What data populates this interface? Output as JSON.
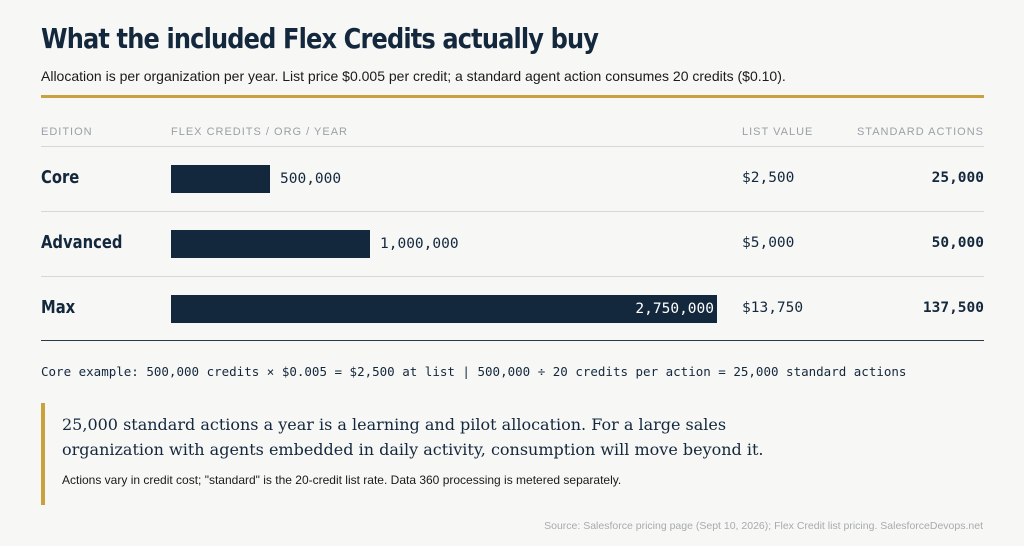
{
  "header": {
    "title": "What the included Flex Credits actually buy",
    "subtitle": "Allocation is per organization per year. List price $0.005 per credit; a standard agent action consumes 20 credits ($0.10)."
  },
  "table": {
    "columns": [
      "EDITION",
      "FLEX CREDITS / ORG / YEAR",
      "LIST VALUE",
      "STANDARD ACTIONS"
    ]
  },
  "chart_data": {
    "type": "bar",
    "orientation": "horizontal",
    "categories": [
      "Core",
      "Advanced",
      "Max"
    ],
    "values": [
      500000,
      1000000,
      2750000
    ],
    "value_labels": [
      "500,000",
      "1,000,000",
      "2,750,000"
    ],
    "list_value": [
      "$2,500",
      "$5,000",
      "$13,750"
    ],
    "standard_actions": [
      "25,000",
      "50,000",
      "137,500"
    ],
    "xlim": [
      0,
      2750000
    ],
    "grid": false,
    "legend": "none"
  },
  "formula": "Core example: 500,000 credits × $0.005 = $2,500 at list | 500,000 ÷ 20 credits per action = 25,000 standard actions",
  "callout": {
    "text": "25,000 standard actions a year is a learning and pilot allocation. For a large sales organization with agents embedded in daily activity, consumption will move beyond it.",
    "note": "Actions vary in credit cost; \"standard\" is the 20-credit list rate. Data 360 processing is metered separately."
  },
  "source": "Source: Salesforce pricing page (Sept 10, 2026); Flex Credit list pricing. SalesforceDevops.net",
  "colors": {
    "bar": "#14283d",
    "accent": "#c9a23f",
    "text": "#14283d"
  }
}
